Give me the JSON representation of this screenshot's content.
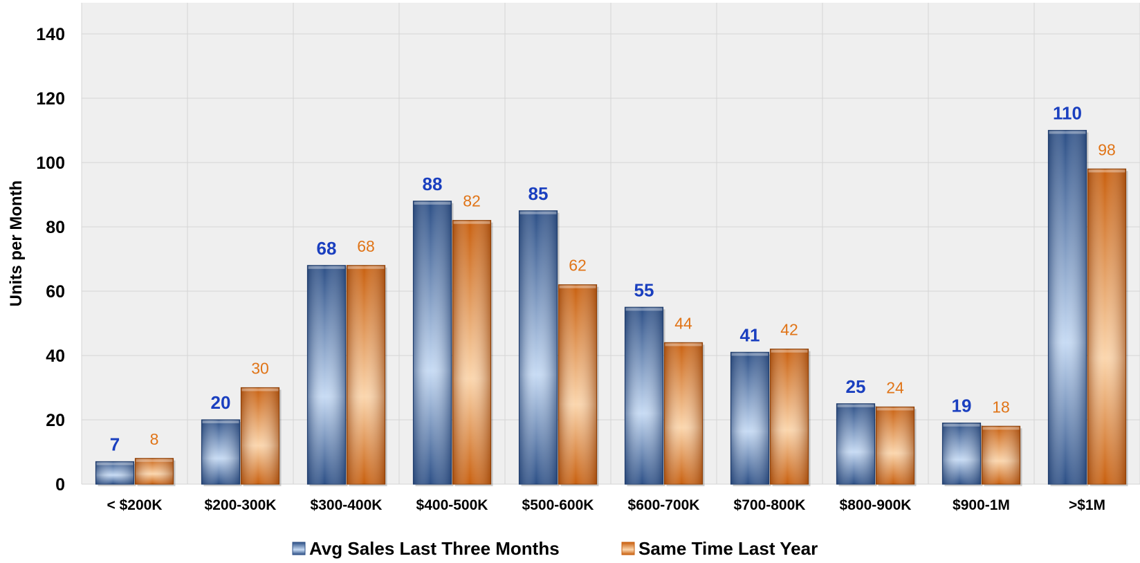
{
  "chart_data": {
    "type": "bar",
    "ylabel": "Units per Month",
    "xlabel": "",
    "ylim": [
      0,
      150
    ],
    "yticks": [
      "0",
      "20",
      "40",
      "60",
      "80",
      "100",
      "120",
      "140"
    ],
    "grid": true,
    "legend_position": "bottom",
    "categories": [
      "< $200K",
      "$200-300K",
      "$300-400K",
      "$400-500K",
      "$500-600K",
      "$600-700K",
      "$700-800K",
      "$800-900K",
      "$900-1M",
      ">$1M"
    ],
    "series": [
      {
        "name": "Avg Sales Last Three Months",
        "values": [
          7,
          20,
          68,
          88,
          85,
          55,
          41,
          25,
          19,
          110
        ],
        "labels": [
          "7",
          "20",
          "68",
          "88",
          "85",
          "55",
          "41",
          "25",
          "19",
          "110"
        ],
        "color": "#3d6aa8",
        "label_color": "#1a3fbf"
      },
      {
        "name": "Same Time Last Year",
        "values": [
          8,
          30,
          68,
          82,
          62,
          44,
          42,
          24,
          18,
          98
        ],
        "labels": [
          "8",
          "30",
          "68",
          "82",
          "62",
          "44",
          "42",
          "24",
          "18",
          "98"
        ],
        "color": "#e07417",
        "label_color": "#e07417"
      }
    ]
  }
}
